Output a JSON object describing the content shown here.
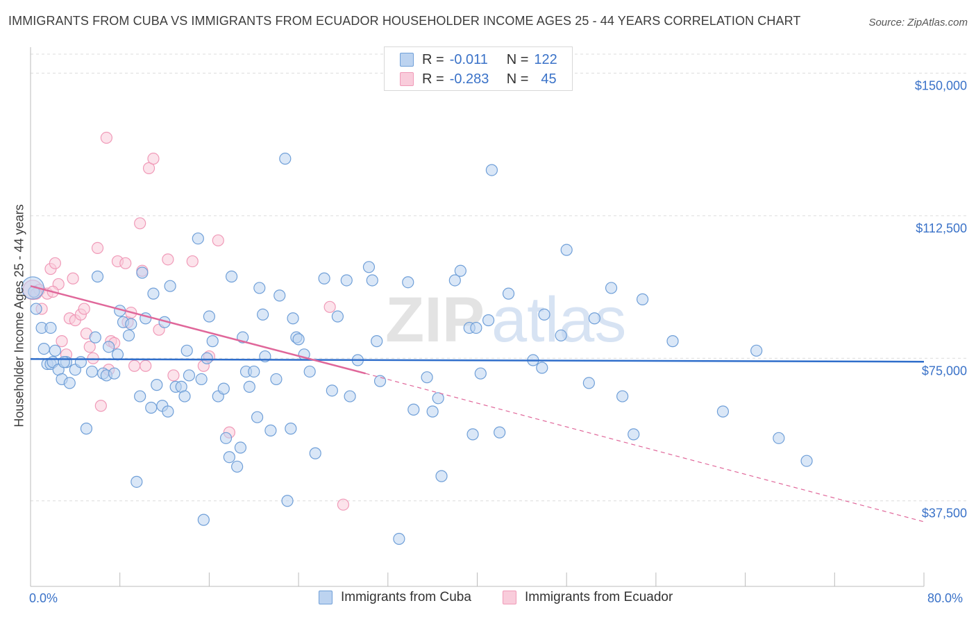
{
  "title": "IMMIGRANTS FROM CUBA VS IMMIGRANTS FROM ECUADOR HOUSEHOLDER INCOME AGES 25 - 44 YEARS CORRELATION CHART",
  "source": "Source: ZipAtlas.com",
  "watermark": {
    "zip": "ZIP",
    "atlas": "atlas"
  },
  "legend": {
    "cuba": {
      "r_label": "R =",
      "r_value": "-0.011",
      "n_label": "N =",
      "n_value": "122"
    },
    "ecuador": {
      "r_label": "R =",
      "r_value": "-0.283",
      "n_label": "N =",
      "n_value": "45"
    }
  },
  "colors": {
    "cuba": "#6f9fd8",
    "ecuador": "#f09ab8",
    "cuba_line": "#2f6ecb",
    "ecuador_line": "#e0679a",
    "axis_text": "#3a72c8"
  },
  "chart_data": {
    "type": "scatter",
    "title": "IMMIGRANTS FROM CUBA VS IMMIGRANTS FROM ECUADOR HOUSEHOLDER INCOME AGES 25 - 44 YEARS CORRELATION CHART",
    "xlabel": "",
    "ylabel": "Householder Income Ages 25 - 44 years",
    "xlim": [
      0,
      80
    ],
    "ylim": [
      15000,
      155000
    ],
    "x_tick_labels": [
      "0.0%",
      "80.0%"
    ],
    "y_ticks": [
      37500,
      75000,
      112500,
      150000
    ],
    "y_tick_labels": [
      "$37,500",
      "$75,000",
      "$112,500",
      "$150,000"
    ],
    "series": [
      {
        "name": "Immigrants from Cuba",
        "trend": {
          "x0": 0,
          "y0": 74800,
          "x1": 80,
          "y1": 74100
        },
        "points": [
          [
            0.3,
            92500
          ],
          [
            0.5,
            88000
          ],
          [
            1.0,
            83000
          ],
          [
            1.2,
            77500
          ],
          [
            1.5,
            73500
          ],
          [
            1.8,
            73500
          ],
          [
            2.0,
            74000
          ],
          [
            2.2,
            77000
          ],
          [
            2.5,
            72000
          ],
          [
            2.8,
            69500
          ],
          [
            3.2,
            74000
          ],
          [
            3.5,
            68500
          ],
          [
            4.0,
            72000
          ],
          [
            4.5,
            74000
          ],
          [
            5.0,
            56500
          ],
          [
            5.5,
            71500
          ],
          [
            5.8,
            80500
          ],
          [
            6.0,
            96500
          ],
          [
            6.5,
            71000
          ],
          [
            6.8,
            70500
          ],
          [
            7.0,
            78000
          ],
          [
            7.5,
            71000
          ],
          [
            7.8,
            76000
          ],
          [
            8.0,
            87500
          ],
          [
            8.3,
            84500
          ],
          [
            8.8,
            81000
          ],
          [
            9.0,
            84000
          ],
          [
            9.5,
            42500
          ],
          [
            9.8,
            65000
          ],
          [
            10.0,
            97500
          ],
          [
            10.3,
            85500
          ],
          [
            10.8,
            62000
          ],
          [
            11.0,
            92000
          ],
          [
            11.3,
            68000
          ],
          [
            11.8,
            62500
          ],
          [
            12.0,
            84500
          ],
          [
            12.3,
            61000
          ],
          [
            12.5,
            94000
          ],
          [
            13.0,
            67500
          ],
          [
            13.5,
            67500
          ],
          [
            13.8,
            65000
          ],
          [
            14.2,
            70500
          ],
          [
            14.0,
            77000
          ],
          [
            15.0,
            106500
          ],
          [
            15.3,
            69500
          ],
          [
            15.5,
            32500
          ],
          [
            15.8,
            75000
          ],
          [
            16.0,
            86000
          ],
          [
            16.3,
            79500
          ],
          [
            16.8,
            65000
          ],
          [
            17.3,
            67000
          ],
          [
            17.5,
            54000
          ],
          [
            17.8,
            49000
          ],
          [
            18.0,
            96500
          ],
          [
            18.5,
            46500
          ],
          [
            18.8,
            51500
          ],
          [
            19.0,
            80500
          ],
          [
            19.3,
            71500
          ],
          [
            19.6,
            67500
          ],
          [
            20.0,
            71500
          ],
          [
            20.3,
            59500
          ],
          [
            20.5,
            93500
          ],
          [
            20.8,
            86500
          ],
          [
            21.0,
            75500
          ],
          [
            21.5,
            56000
          ],
          [
            22.0,
            69500
          ],
          [
            22.3,
            91500
          ],
          [
            22.8,
            127500
          ],
          [
            23.0,
            37500
          ],
          [
            23.3,
            56500
          ],
          [
            23.5,
            85500
          ],
          [
            23.8,
            80500
          ],
          [
            24.0,
            80000
          ],
          [
            24.5,
            76000
          ],
          [
            25.0,
            71500
          ],
          [
            25.5,
            50000
          ],
          [
            26.3,
            96000
          ],
          [
            27.0,
            66500
          ],
          [
            27.5,
            86000
          ],
          [
            28.3,
            95500
          ],
          [
            28.6,
            65000
          ],
          [
            29.3,
            74500
          ],
          [
            30.3,
            99000
          ],
          [
            30.6,
            95500
          ],
          [
            31.0,
            79500
          ],
          [
            31.3,
            69000
          ],
          [
            33.0,
            27500
          ],
          [
            33.8,
            95000
          ],
          [
            34.3,
            61500
          ],
          [
            35.5,
            70000
          ],
          [
            36.0,
            61000
          ],
          [
            36.5,
            64500
          ],
          [
            36.8,
            44000
          ],
          [
            38.0,
            95500
          ],
          [
            38.5,
            98000
          ],
          [
            39.3,
            83000
          ],
          [
            39.6,
            55000
          ],
          [
            39.9,
            83000
          ],
          [
            40.3,
            71000
          ],
          [
            41.0,
            85000
          ],
          [
            41.3,
            124500
          ],
          [
            42.0,
            55500
          ],
          [
            42.8,
            92000
          ],
          [
            45.0,
            74500
          ],
          [
            45.8,
            72500
          ],
          [
            46.0,
            86500
          ],
          [
            47.5,
            81000
          ],
          [
            48.0,
            103500
          ],
          [
            50.0,
            68500
          ],
          [
            50.5,
            85500
          ],
          [
            52.0,
            93500
          ],
          [
            53.0,
            65000
          ],
          [
            54.0,
            55000
          ],
          [
            54.8,
            90500
          ],
          [
            57.5,
            79500
          ],
          [
            62.0,
            61000
          ],
          [
            65.0,
            77000
          ],
          [
            67.0,
            54000
          ],
          [
            69.5,
            48000
          ],
          [
            0.2,
            93500
          ],
          [
            1.8,
            83000
          ],
          [
            3.0,
            74000
          ]
        ]
      },
      {
        "name": "Immigrants from Ecuador",
        "trend": {
          "x0": 0,
          "y0": 94000,
          "x1": 30,
          "y1": 71000,
          "dash_x1": 80,
          "dash_y1": 32000
        },
        "points": [
          [
            0.2,
            93000
          ],
          [
            0.8,
            93000
          ],
          [
            1.0,
            88000
          ],
          [
            1.5,
            92000
          ],
          [
            1.8,
            98500
          ],
          [
            2.2,
            100000
          ],
          [
            2.5,
            94500
          ],
          [
            2.8,
            79500
          ],
          [
            3.2,
            76000
          ],
          [
            3.5,
            85500
          ],
          [
            3.8,
            96000
          ],
          [
            4.0,
            85000
          ],
          [
            4.5,
            86500
          ],
          [
            4.8,
            88000
          ],
          [
            5.0,
            81500
          ],
          [
            5.3,
            78000
          ],
          [
            5.6,
            75000
          ],
          [
            6.0,
            104000
          ],
          [
            6.3,
            62500
          ],
          [
            6.8,
            133000
          ],
          [
            7.0,
            72000
          ],
          [
            7.2,
            79500
          ],
          [
            7.5,
            79000
          ],
          [
            7.8,
            100500
          ],
          [
            8.5,
            100000
          ],
          [
            8.7,
            84500
          ],
          [
            9.0,
            87000
          ],
          [
            9.3,
            73000
          ],
          [
            9.8,
            110500
          ],
          [
            10.0,
            98000
          ],
          [
            10.3,
            73000
          ],
          [
            10.6,
            125000
          ],
          [
            11.0,
            127500
          ],
          [
            11.5,
            82500
          ],
          [
            12.3,
            101000
          ],
          [
            12.8,
            70500
          ],
          [
            14.5,
            100500
          ],
          [
            15.5,
            73000
          ],
          [
            16.0,
            75500
          ],
          [
            16.8,
            106000
          ],
          [
            17.8,
            55500
          ],
          [
            26.8,
            88500
          ],
          [
            28.0,
            36500
          ],
          [
            0.5,
            92000
          ],
          [
            2.0,
            92500
          ]
        ]
      }
    ]
  },
  "bottom_legend": {
    "cuba": "Immigrants from Cuba",
    "ecuador": "Immigrants from Ecuador"
  },
  "axis": {
    "x_min_label": "0.0%",
    "x_max_label": "80.0%",
    "ylabel": "Householder Income Ages 25 - 44 years"
  }
}
